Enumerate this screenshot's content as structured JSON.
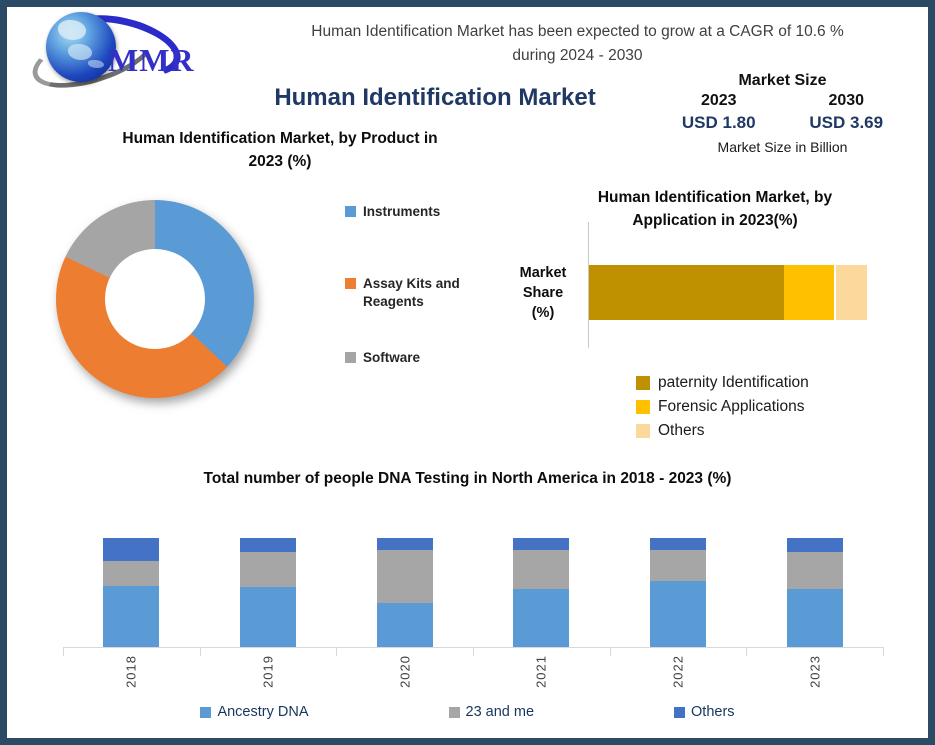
{
  "window": {
    "border_color": "#2A4A66",
    "background": "#FFFFFF"
  },
  "logo": {
    "text": "MMR",
    "globe_color": "#1D46BD",
    "text_color": "#3330C8"
  },
  "header": {
    "line1": "Human Identification Market has been expected to grow at a CAGR of 10.6 %",
    "line2": "during 2024 - 2030",
    "main_title": "Human Identification Market",
    "title_color": "#1F3864"
  },
  "market_size": {
    "title": "Market Size",
    "year_start": "2023",
    "year_end": "2030",
    "value_start": "USD 1.80",
    "value_end": "USD 3.69",
    "note": "Market Size in Billion",
    "value_color": "#1F3864"
  },
  "chart_data": [
    {
      "type": "pie",
      "variant": "donut",
      "title_lines": [
        "Human Identification Market, by Product in",
        "2023  (%)"
      ],
      "labels": [
        "Instruments",
        "Assay Kits and Reagents",
        "Software"
      ],
      "values": [
        37,
        45,
        18
      ],
      "colors": [
        "#5B9BD5",
        "#ED7D31",
        "#A5A5A5"
      ],
      "legend_position": "right"
    },
    {
      "type": "bar",
      "orientation": "horizontal",
      "stacked": true,
      "title_lines": [
        "Human Identification Market, by",
        "Application in 2023(%)"
      ],
      "categories": [
        "Market Share (%)"
      ],
      "axis_label": "Market Share (%)",
      "xlim": [
        0,
        100
      ],
      "series": [
        {
          "name": "paternity Identification",
          "values": [
            70
          ],
          "color": "#BF9000"
        },
        {
          "name": "Forensic Applications",
          "values": [
            18
          ],
          "color": "#FFC000"
        },
        {
          "name": "Others",
          "values": [
            12
          ],
          "color": "#FBD99D",
          "gap_before": true
        }
      ],
      "legend_position": "bottom"
    },
    {
      "type": "bar",
      "orientation": "vertical",
      "stacked": true,
      "title": "Total number of people DNA Testing in North America in 2018 - 2023 (%)",
      "categories": [
        "2018",
        "2019",
        "2020",
        "2021",
        "2022",
        "2023"
      ],
      "ylim": [
        0,
        100
      ],
      "grid": false,
      "series": [
        {
          "name": "Ancestry DNA",
          "color": "#5B9BD5",
          "values": [
            56,
            55,
            40,
            53,
            61,
            53
          ]
        },
        {
          "name": "23 and me",
          "color": "#A6A6A6",
          "values": [
            23,
            32,
            49,
            36,
            28,
            34
          ]
        },
        {
          "name": "Others",
          "color": "#4472C4",
          "values": [
            21,
            13,
            11,
            11,
            11,
            13
          ]
        }
      ],
      "legend_position": "bottom"
    }
  ]
}
